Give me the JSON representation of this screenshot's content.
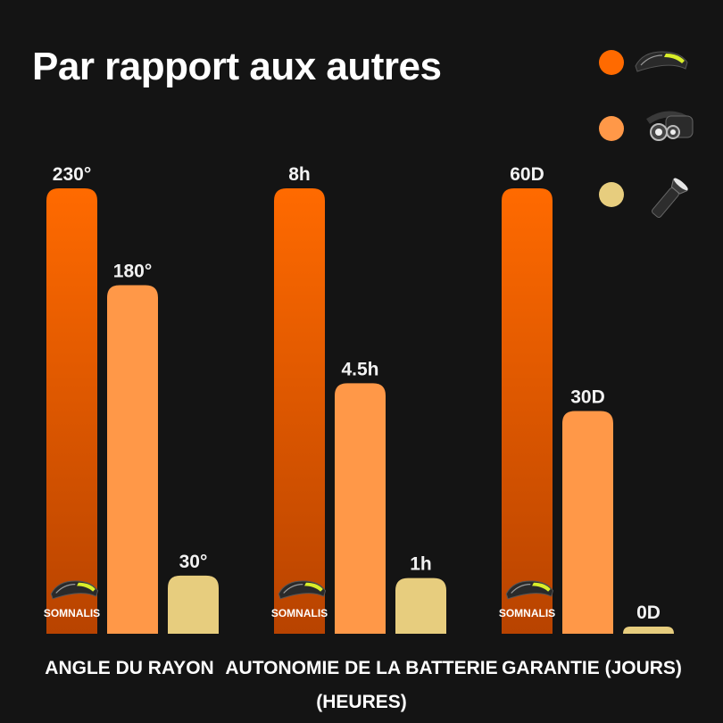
{
  "page": {
    "title": "Par rapport aux autres"
  },
  "colors": {
    "background": "#141414",
    "series_somnalis_top": "#ff6a00",
    "series_somnalis_bottom": "#b84300",
    "series_headlamp": "#ff9848",
    "series_flashlight": "#e7cd7e"
  },
  "legend": {
    "position": "top-right",
    "items": [
      {
        "icon": "led-headband-icon",
        "color": "#ff6a00"
      },
      {
        "icon": "classic-headlamp-icon",
        "color": "#ff9848"
      },
      {
        "icon": "flashlight-icon",
        "color": "#e7cd7e"
      }
    ]
  },
  "brand": {
    "name": "SOMNALIS",
    "icon": "led-headband-icon"
  },
  "chart_data": [
    {
      "type": "bar",
      "title": "",
      "xlabel": "ANGLE DU RAYON",
      "series_colors": [
        "#ff6a00",
        "#ff9848",
        "#e7cd7e"
      ],
      "values": [
        230,
        180,
        30
      ],
      "value_labels": [
        "230°",
        "180°",
        "30°"
      ],
      "ylim": [
        0,
        230
      ]
    },
    {
      "type": "bar",
      "title": "",
      "xlabel": "AUTONOMIE DE LA BATTERIE",
      "xlabel_line2": "(HEURES)",
      "series_colors": [
        "#ff6a00",
        "#ff9848",
        "#e7cd7e"
      ],
      "values": [
        8,
        4.5,
        1
      ],
      "value_labels": [
        "8h",
        "4.5h",
        "1h"
      ],
      "ylim": [
        0,
        8
      ]
    },
    {
      "type": "bar",
      "title": "",
      "xlabel": "GARANTIE (JOURS)",
      "series_colors": [
        "#ff6a00",
        "#ff9848",
        "#e7cd7e"
      ],
      "values": [
        60,
        30,
        0
      ],
      "value_labels": [
        "60D",
        "30D",
        "0D"
      ],
      "ylim": [
        0,
        60
      ]
    }
  ]
}
